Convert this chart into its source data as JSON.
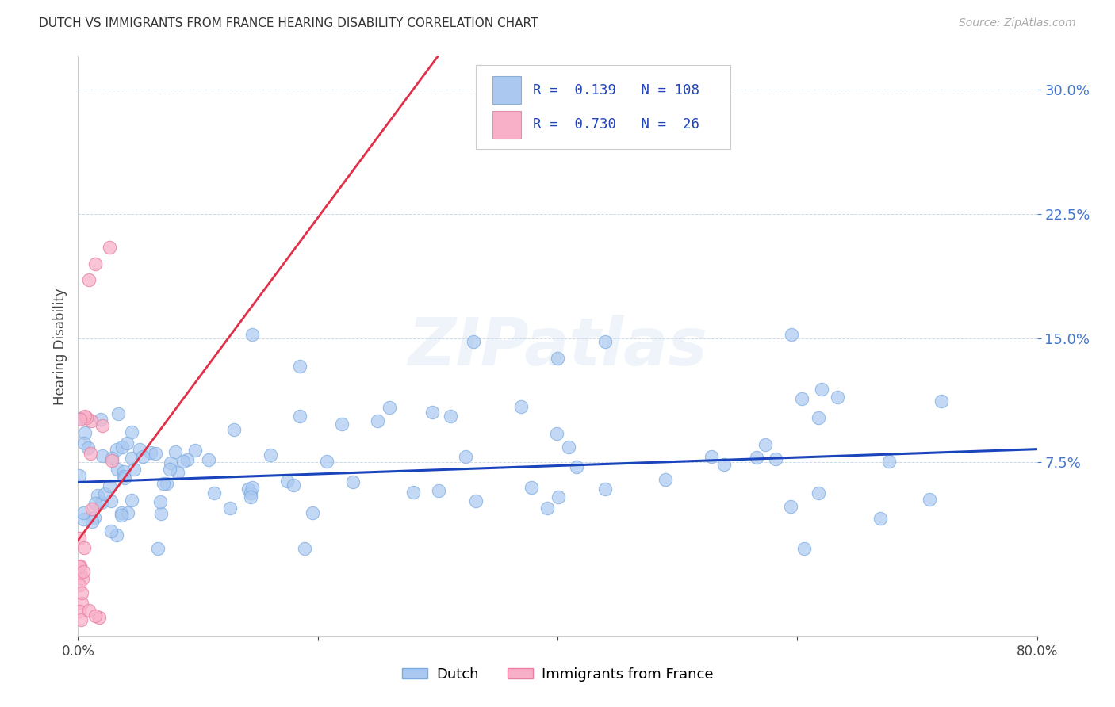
{
  "title": "DUTCH VS IMMIGRANTS FROM FRANCE HEARING DISABILITY CORRELATION CHART",
  "source": "Source: ZipAtlas.com",
  "ylabel": "Hearing Disability",
  "xlim": [
    0.0,
    0.8
  ],
  "ylim": [
    -0.03,
    0.32
  ],
  "xticks": [
    0.0,
    0.2,
    0.4,
    0.6,
    0.8
  ],
  "xticklabels": [
    "0.0%",
    "",
    "",
    "",
    "80.0%"
  ],
  "yticks": [
    0.075,
    0.15,
    0.225,
    0.3
  ],
  "yticklabels": [
    "7.5%",
    "15.0%",
    "22.5%",
    "30.0%"
  ],
  "dutch_color": "#aac8f0",
  "dutch_edge_color": "#7aaae0",
  "dutch_line_color": "#1a44bb",
  "france_color": "#f8b0c8",
  "france_edge_color": "#e880a0",
  "france_line_color": "#e0304a",
  "legend_dutch_R": "0.139",
  "legend_dutch_N": "108",
  "legend_france_R": "0.730",
  "legend_france_N": "26",
  "legend_label_dutch": "Dutch",
  "legend_label_france": "Immigrants from France",
  "watermark": "ZIPatlas",
  "background_color": "#ffffff",
  "dutch_trend_x": [
    0.0,
    0.8
  ],
  "dutch_trend_y": [
    0.063,
    0.083
  ],
  "france_trend_x": [
    0.0,
    0.3
  ],
  "france_trend_y": [
    0.028,
    0.32
  ]
}
